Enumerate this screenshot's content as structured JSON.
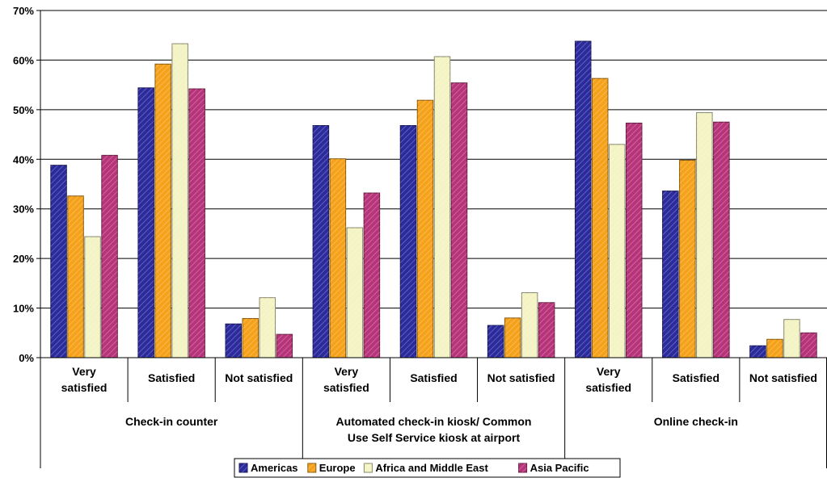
{
  "chart_data": {
    "type": "bar",
    "ylim": [
      0,
      70
    ],
    "y_tick_step": 10,
    "y_tick_labels": [
      "0%",
      "10%",
      "20%",
      "30%",
      "40%",
      "50%",
      "60%",
      "70%"
    ],
    "grid": true,
    "legend_position": "bottom",
    "categories": [
      "Very satisfied",
      "Satisfied",
      "Not satisfied",
      "Very satisfied",
      "Satisfied",
      "Not satisfied",
      "Very satisfied",
      "Satisfied",
      "Not satisfied"
    ],
    "category_label_lines": [
      [
        "Very",
        "satisfied"
      ],
      [
        "Satisfied"
      ],
      [
        "Not satisfied"
      ],
      [
        "Very",
        "satisfied"
      ],
      [
        "Satisfied"
      ],
      [
        "Not satisfied"
      ],
      [
        "Very",
        "satisfied"
      ],
      [
        "Satisfied"
      ],
      [
        "Not satisfied"
      ]
    ],
    "groups": [
      {
        "label_lines": [
          "Check-in counter"
        ]
      },
      {
        "label_lines": [
          "Automated check-in kiosk/ Common",
          "Use Self Service kiosk at airport"
        ]
      },
      {
        "label_lines": [
          "Online check-in"
        ]
      }
    ],
    "series": [
      {
        "name": "Americas",
        "color": "#2b2b9e",
        "values": [
          38.8,
          54.4,
          6.8,
          46.8,
          46.8,
          6.5,
          63.8,
          33.6,
          2.4
        ]
      },
      {
        "name": "Europe",
        "color": "#f5a21a",
        "values": [
          32.6,
          59.2,
          7.9,
          40.1,
          51.9,
          8.0,
          56.3,
          39.8,
          3.7
        ]
      },
      {
        "name": "Africa and Middle East",
        "color": "#f3f3c4",
        "values": [
          24.4,
          63.3,
          12.1,
          26.2,
          60.7,
          13.1,
          43.0,
          49.4,
          7.7
        ]
      },
      {
        "name": "Asia Pacific",
        "color": "#b8347a",
        "values": [
          40.8,
          54.2,
          4.7,
          33.2,
          55.4,
          11.1,
          47.3,
          47.5,
          5.0
        ]
      }
    ]
  }
}
